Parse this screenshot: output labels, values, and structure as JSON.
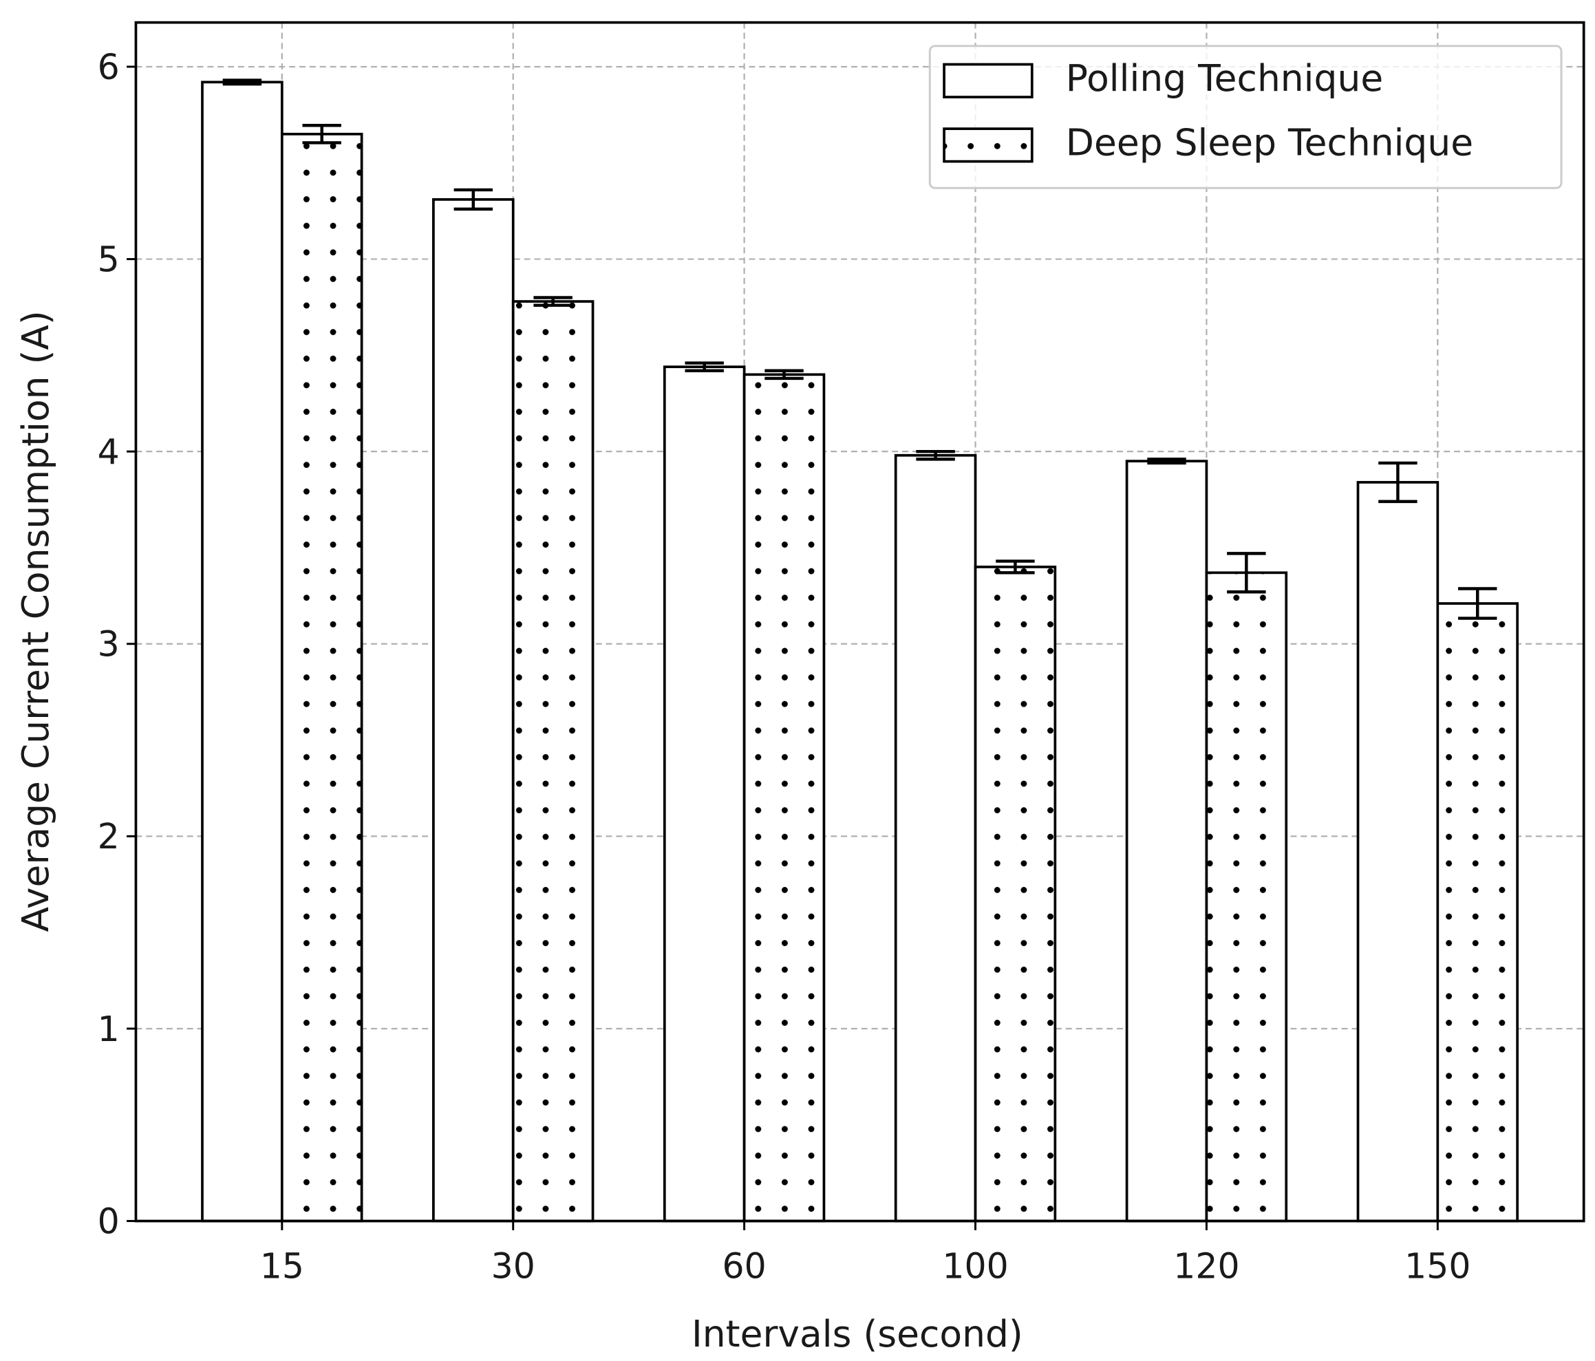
{
  "chart_data": {
    "type": "bar",
    "x_label": "Intervals (second)",
    "y_label": "Average Current Consumption (A)",
    "categories": [
      "15",
      "30",
      "60",
      "100",
      "120",
      "150"
    ],
    "series": [
      {
        "name": "Polling Technique",
        "color": "#ffffff",
        "hatch": "none",
        "values": [
          5.92,
          5.31,
          4.44,
          3.98,
          3.95,
          3.84
        ],
        "errors": [
          0.01,
          0.05,
          0.02,
          0.02,
          0.01,
          0.1
        ]
      },
      {
        "name": "Deep Sleep Technique",
        "color": "#ffffff",
        "hatch": "dots",
        "values": [
          5.65,
          4.78,
          4.4,
          3.4,
          3.37,
          3.21
        ],
        "errors": [
          0.045,
          0.02,
          0.02,
          0.03,
          0.1,
          0.077
        ]
      }
    ],
    "ylim": [
      0,
      6.23
    ],
    "yticks": [
      0,
      1,
      2,
      3,
      4,
      5,
      6
    ],
    "grid": true,
    "legend_position": "upper right"
  }
}
